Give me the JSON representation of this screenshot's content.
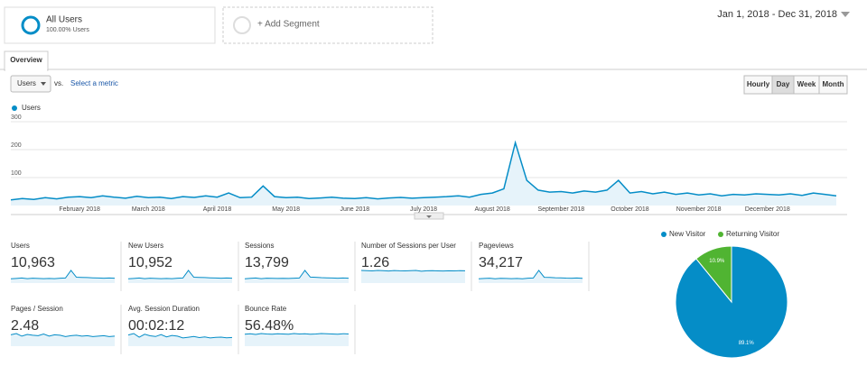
{
  "segments": [
    {
      "title": "All Users",
      "subtitle": "100.00% Users"
    }
  ],
  "add_segment": "+ Add Segment",
  "date_range": "Jan 1, 2018 - Dec 31, 2018",
  "tabs": [
    "Overview"
  ],
  "metric_dropdown": "Users",
  "vs_label": "vs.",
  "select_metric": "Select a metric",
  "granularity": [
    "Hourly",
    "Day",
    "Week",
    "Month"
  ],
  "active_granularity": 1,
  "chart_data": [
    {
      "type": "line",
      "series": [
        {
          "name": "Users",
          "color": "#058dc7",
          "values": [
            20,
            25,
            22,
            28,
            24,
            30,
            32,
            28,
            35,
            30,
            26,
            33,
            28,
            30,
            25,
            32,
            29,
            35,
            30,
            45,
            28,
            30,
            70,
            32,
            28,
            30,
            25,
            27,
            30,
            26,
            25,
            28,
            24,
            27,
            29,
            26,
            28,
            30,
            32,
            35,
            30,
            40,
            45,
            60,
            225,
            90,
            55,
            48,
            50,
            45,
            52,
            48,
            55,
            90,
            45,
            50,
            42,
            48,
            40,
            45,
            38,
            42,
            35,
            40,
            38,
            42,
            40,
            38,
            42,
            36,
            45,
            40,
            35
          ]
        }
      ],
      "x_axis_labels": [
        "February 2018",
        "March 2018",
        "April 2018",
        "May 2018",
        "June 2018",
        "July 2018",
        "August 2018",
        "September 2018",
        "October 2018",
        "November 2018",
        "December 2018"
      ],
      "ylim": [
        0,
        300
      ],
      "yticks": [
        100,
        200,
        300
      ],
      "grid": true
    },
    {
      "type": "pie",
      "series": [
        {
          "name": "New Visitor",
          "color": "#058dc7",
          "values": [
            89.1
          ],
          "value_labels": [
            "89.1%"
          ]
        },
        {
          "name": "Returning Visitor",
          "color": "#50b432",
          "values": [
            10.9
          ],
          "value_labels": [
            "10.9%"
          ]
        }
      ]
    }
  ],
  "scorecards": [
    {
      "label": "Users",
      "value": "10,963",
      "trend": [
        20,
        22,
        24,
        21,
        23,
        22,
        21,
        22,
        21,
        23,
        24,
        60,
        28,
        27,
        26,
        25,
        24,
        23,
        24,
        23
      ]
    },
    {
      "label": "New Users",
      "value": "10,952",
      "trend": [
        20,
        22,
        24,
        21,
        23,
        22,
        21,
        22,
        21,
        23,
        24,
        60,
        28,
        27,
        26,
        25,
        24,
        23,
        24,
        23
      ]
    },
    {
      "label": "Sessions",
      "value": "13,799",
      "trend": [
        24,
        27,
        29,
        25,
        28,
        27,
        26,
        27,
        26,
        28,
        29,
        72,
        34,
        33,
        31,
        30,
        29,
        28,
        29,
        28
      ]
    },
    {
      "label": "Number of Sessions per User",
      "value": "1.26",
      "trend": [
        1.3,
        1.28,
        1.25,
        1.3,
        1.27,
        1.24,
        1.29,
        1.26,
        1.25,
        1.28,
        1.3,
        1.22,
        1.26,
        1.27,
        1.25,
        1.24,
        1.26,
        1.25,
        1.27,
        1.26
      ]
    },
    {
      "label": "Pageviews",
      "value": "34,217",
      "trend": [
        60,
        66,
        70,
        62,
        68,
        65,
        63,
        66,
        62,
        69,
        72,
        180,
        82,
        80,
        76,
        74,
        71,
        69,
        72,
        68
      ]
    },
    {
      "label": "Pages / Session",
      "value": "2.48",
      "trend": [
        2.6,
        2.9,
        2.3,
        2.7,
        2.5,
        2.4,
        2.8,
        2.3,
        2.6,
        2.5,
        2.2,
        2.4,
        2.5,
        2.3,
        2.4,
        2.2,
        2.3,
        2.4,
        2.2,
        2.3
      ]
    },
    {
      "label": "Avg. Session Duration",
      "value": "00:02:12",
      "trend": [
        150,
        170,
        120,
        160,
        140,
        130,
        155,
        125,
        145,
        135,
        110,
        120,
        130,
        115,
        125,
        110,
        118,
        122,
        112,
        116
      ]
    },
    {
      "label": "Bounce Rate",
      "value": "56.48%",
      "trend": [
        55,
        57,
        54,
        58,
        56,
        55,
        57,
        56,
        55,
        58,
        56,
        57,
        55,
        56,
        58,
        57,
        56,
        55,
        57,
        56
      ]
    }
  ]
}
